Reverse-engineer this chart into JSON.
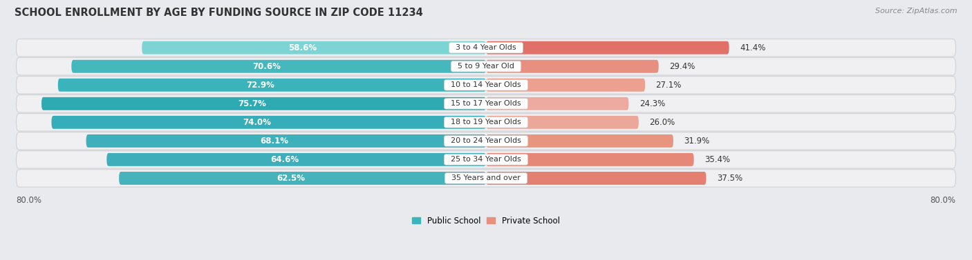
{
  "title": "SCHOOL ENROLLMENT BY AGE BY FUNDING SOURCE IN ZIP CODE 11234",
  "source": "Source: ZipAtlas.com",
  "categories": [
    "3 to 4 Year Olds",
    "5 to 9 Year Old",
    "10 to 14 Year Olds",
    "15 to 17 Year Olds",
    "18 to 19 Year Olds",
    "20 to 24 Year Olds",
    "25 to 34 Year Olds",
    "35 Years and over"
  ],
  "public_values": [
    58.6,
    70.6,
    72.9,
    75.7,
    74.0,
    68.1,
    64.6,
    62.5
  ],
  "private_values": [
    41.4,
    29.4,
    27.1,
    24.3,
    26.0,
    31.9,
    35.4,
    37.5
  ],
  "public_colors": [
    "#7dd4d4",
    "#45b8be",
    "#3ab4ba",
    "#2eabb2",
    "#35aeba",
    "#3db0bb",
    "#3eafba",
    "#46b2bc"
  ],
  "private_colors": [
    "#e07068",
    "#e89080",
    "#eba090",
    "#edaaa0",
    "#eba898",
    "#e89580",
    "#e68878",
    "#e48070"
  ],
  "public_label": "Public School",
  "private_label": "Private School",
  "axis_min": -80.0,
  "axis_max": 80.0,
  "axis_label_left": "80.0%",
  "axis_label_right": "80.0%",
  "background_color": "#e8eaed",
  "bar_bg_color": "#f0f0f2",
  "bar_bg_border": "#d0d2d6",
  "title_fontsize": 10.5,
  "source_fontsize": 8,
  "bar_label_fontsize": 8.5,
  "category_fontsize": 8,
  "legend_fontsize": 8.5
}
